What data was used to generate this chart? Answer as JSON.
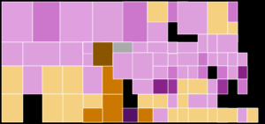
{
  "figsize": [
    3.0,
    1.41
  ],
  "dpi": 100,
  "background": "#000000",
  "border_color": "#ffffff",
  "border_lw": 0.35,
  "county_colors": {
    "Sioux": "#e0a0e0",
    "Dawes": "#cc77cc",
    "Sheridan": "#e0a0e0",
    "Box Butte": "#e0a0e0",
    "Scotts Bluff": "#dda0dd",
    "Banner": "#f5d080",
    "Kimball": "#f5d080",
    "Morrill": "#dda0dd",
    "Garden": "#dda0dd",
    "Cheyenne": "#dda0dd",
    "Deuel": "#f5d080",
    "Keith": "#f5d080",
    "Perkins": "#dda0dd",
    "Chase": "#f5d080",
    "Dundy": "#f5d080",
    "Hitchcock": "#f5d080",
    "Red Willow": "#cc7700",
    "Furnas": "#551166",
    "Harlan": "#cc7700",
    "Franklin": "#dda0dd",
    "Webster": "#f5d080",
    "Nuckolls": "#f5d080",
    "Thayer": "#f5d080",
    "Fillmore": "#dda0dd",
    "Saline": "#dda0dd",
    "Jefferson": "#f5d080",
    "Gage": "#f5d080",
    "Pawnee": "#f5d080",
    "Johnson": "#dda0dd",
    "Nemaha": "#f5d080",
    "Richardson": "#f5d080",
    "Lancaster": "#993399",
    "Saunders": "#dda0dd",
    "Seward": "#dda0dd",
    "York": "#f5d080",
    "Polk": "#dda0dd",
    "Hamilton": "#f5d080",
    "Clay": "#f5d080",
    "Adams": "#dda0dd",
    "Kearney": "#f5d080",
    "Phelps": "#f5d080",
    "Gosper": "#dda0dd",
    "Frontier": "#cc7700",
    "Hayes": "#cc7700",
    "Dawson": "#dda0dd",
    "Buffalo": "#882288",
    "Sherman": "#dda0dd",
    "Howard": "#dda0dd",
    "Hall": "#993399",
    "Merrick": "#dda0dd",
    "Nance": "#dda0dd",
    "Boone": "#dda0dd",
    "Platte": "#cc77cc",
    "Colfax": "#cc77cc",
    "Dodge": "#dda0dd",
    "Douglas": "#882288",
    "Sarpy": "#cc77cc",
    "Washington": "#dda0dd",
    "Burt": "#dda0dd",
    "Cuming": "#dda0dd",
    "Stanton": "#dda0dd",
    "Madison": "#cc77cc",
    "Antelope": "#dda0dd",
    "Pierce": "#dda0dd",
    "Wayne": "#dda0dd",
    "Thurston": "#cc77cc",
    "Dakota": "#f5d080",
    "Dixon": "#cc77cc",
    "Cedar": "#f5d080",
    "Knox": "#dda0dd",
    "Boyd": "#cc77cc",
    "Keya Paha": "#f5d080",
    "Brown": "#cc77cc",
    "Rock": "#dda0dd",
    "Holt": "#dda0dd",
    "Wheeler": "#dda0dd",
    "Garfield": "#dda0dd",
    "Loup": "#dda0dd",
    "Blaine": "#dda0dd",
    "Thomas": "#8a5500",
    "McPherson": "#8a5500",
    "Logan": "#aaaaaa",
    "Custer": "#dda0dd",
    "Valley": "#dda0dd",
    "Greeley": "#cc77cc",
    "Arthur": "#dda0dd",
    "Grant": "#f5d080",
    "Hooker": "#dda0dd",
    "Cherry": "#dda0dd",
    "Lincoln": "#dda0dd"
  }
}
